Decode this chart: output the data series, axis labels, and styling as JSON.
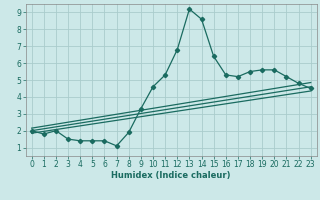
{
  "xlabel": "Humidex (Indice chaleur)",
  "background_color": "#cce8e8",
  "grid_color": "#aacccc",
  "line_color": "#1a6b60",
  "xlim": [
    -0.5,
    23.5
  ],
  "ylim": [
    0.5,
    9.5
  ],
  "xticks": [
    0,
    1,
    2,
    3,
    4,
    5,
    6,
    7,
    8,
    9,
    10,
    11,
    12,
    13,
    14,
    15,
    16,
    17,
    18,
    19,
    20,
    21,
    22,
    23
  ],
  "yticks": [
    1,
    2,
    3,
    4,
    5,
    6,
    7,
    8,
    9
  ],
  "line1_x": [
    0,
    1,
    2,
    3,
    4,
    5,
    6,
    7,
    8,
    9,
    10,
    11,
    12,
    13,
    14,
    15,
    16,
    17,
    18,
    19,
    20,
    21,
    22,
    23
  ],
  "line1_y": [
    2.0,
    1.8,
    2.0,
    1.5,
    1.4,
    1.4,
    1.4,
    1.1,
    1.9,
    3.3,
    4.6,
    5.3,
    6.8,
    9.2,
    8.6,
    6.4,
    5.3,
    5.2,
    5.5,
    5.6,
    5.6,
    5.2,
    4.8,
    4.5
  ],
  "line2_x": [
    0,
    23
  ],
  "line2_y": [
    2.0,
    4.6
  ],
  "line3_x": [
    0,
    23
  ],
  "line3_y": [
    1.85,
    4.35
  ],
  "line4_x": [
    0,
    23
  ],
  "line4_y": [
    2.15,
    4.85
  ]
}
